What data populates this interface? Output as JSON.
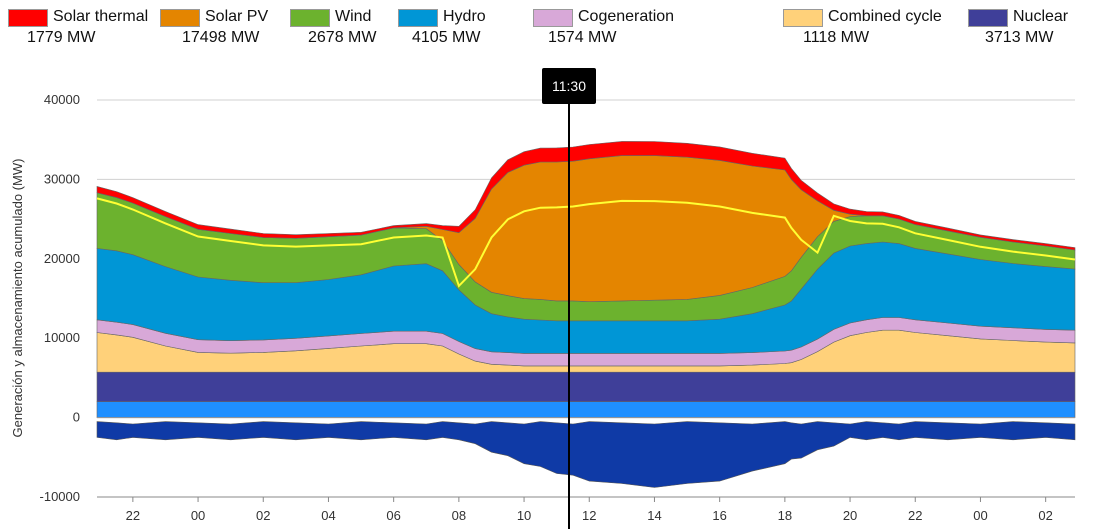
{
  "chart_data": {
    "type": "area",
    "ylabel": "Generación y almacenamiento acumulado (MW)",
    "ylim": [
      -10000,
      40000
    ],
    "yticks": [
      -10000,
      0,
      10000,
      20000,
      30000,
      40000
    ],
    "xticks": [
      "22",
      "00",
      "02",
      "04",
      "06",
      "08",
      "10",
      "12",
      "14",
      "16",
      "18",
      "20",
      "22",
      "00",
      "02"
    ],
    "tooltip_time": "11:30",
    "grid": true,
    "legend_position": "top",
    "x_hours": [
      20.9,
      21.5,
      22,
      23,
      24,
      25,
      26,
      27,
      28,
      29,
      30,
      31,
      31.5,
      32,
      32.5,
      33,
      33.5,
      34,
      34.5,
      35,
      35.5,
      36,
      37,
      38,
      39,
      40,
      41,
      42,
      42.2,
      42.5,
      43,
      43.5,
      44,
      44.5,
      45,
      45.5,
      46,
      47,
      48,
      49,
      50,
      50.9
    ],
    "series": [
      {
        "name": "Nuclear",
        "color": "#3f3f99",
        "values": [
          3713,
          3713,
          3713,
          3713,
          3713,
          3713,
          3713,
          3713,
          3713,
          3713,
          3713,
          3713,
          3713,
          3713,
          3713,
          3713,
          3713,
          3713,
          3713,
          3713,
          3713,
          3713,
          3713,
          3713,
          3713,
          3713,
          3713,
          3713,
          3713,
          3713,
          3713,
          3713,
          3713,
          3713,
          3713,
          3713,
          3713,
          3713,
          3713,
          3713,
          3713,
          3713
        ]
      },
      {
        "name": "Combined cycle",
        "color": "#ffd17a",
        "values": [
          5000,
          4700,
          4400,
          3300,
          2500,
          2400,
          2500,
          2700,
          3000,
          3300,
          3600,
          3600,
          3300,
          2300,
          1400,
          1000,
          900,
          800,
          800,
          800,
          800,
          800,
          800,
          800,
          800,
          800,
          900,
          1100,
          1200,
          1600,
          2600,
          3800,
          4600,
          5000,
          5300,
          5300,
          5000,
          4600,
          4200,
          4000,
          3800,
          3700
        ]
      },
      {
        "name": "Cogeneration",
        "color": "#d8a8d8",
        "values": [
          1600,
          1600,
          1600,
          1600,
          1600,
          1574,
          1574,
          1574,
          1574,
          1574,
          1574,
          1574,
          1574,
          1574,
          1574,
          1574,
          1574,
          1574,
          1574,
          1574,
          1574,
          1574,
          1574,
          1574,
          1574,
          1574,
          1574,
          1574,
          1574,
          1574,
          1574,
          1600,
          1600,
          1600,
          1600,
          1600,
          1600,
          1600,
          1600,
          1600,
          1600,
          1600
        ]
      },
      {
        "name": "Hydro",
        "color": "#0096d6",
        "values": [
          9000,
          9000,
          8800,
          8400,
          7900,
          7600,
          7200,
          7000,
          7100,
          7400,
          8200,
          8500,
          7900,
          6500,
          5500,
          4800,
          4500,
          4300,
          4200,
          4105,
          4105,
          4105,
          4105,
          4105,
          4105,
          4300,
          4900,
          5800,
          6200,
          7300,
          8800,
          9600,
          9700,
          9600,
          9500,
          9300,
          9000,
          8700,
          8400,
          8100,
          7900,
          7700
        ]
      },
      {
        "name": "Wind",
        "color": "#6cb22e",
        "values": [
          7000,
          6700,
          6500,
          6300,
          6000,
          5900,
          5700,
          5600,
          5400,
          5000,
          4800,
          4400,
          3800,
          3200,
          2900,
          2700,
          2678,
          2600,
          2600,
          2500,
          2500,
          2400,
          2500,
          2600,
          2700,
          3000,
          3300,
          3600,
          3800,
          4000,
          4100,
          4000,
          3700,
          3500,
          3300,
          3100,
          3000,
          2900,
          2800,
          2700,
          2600,
          2400
        ]
      },
      {
        "name": "Solar PV",
        "color": "#e48500",
        "values": [
          0,
          0,
          0,
          0,
          0,
          0,
          0,
          0,
          0,
          0,
          0,
          300,
          1400,
          4000,
          8000,
          13000,
          15500,
          16800,
          17300,
          17498,
          17600,
          18000,
          18300,
          18200,
          17900,
          17000,
          15300,
          13400,
          11500,
          8500,
          4500,
          1400,
          300,
          0,
          0,
          0,
          0,
          0,
          0,
          0,
          0,
          0
        ]
      },
      {
        "name": "Solar thermal",
        "color": "#ff0000",
        "values": [
          800,
          750,
          700,
          650,
          600,
          550,
          500,
          450,
          400,
          350,
          300,
          350,
          500,
          800,
          1100,
          1400,
          1600,
          1700,
          1750,
          1779,
          1790,
          1800,
          1800,
          1780,
          1760,
          1700,
          1600,
          1500,
          1400,
          1200,
          1000,
          800,
          650,
          550,
          500,
          450,
          400,
          350,
          300,
          300,
          300,
          300
        ]
      }
    ]
  }
}
